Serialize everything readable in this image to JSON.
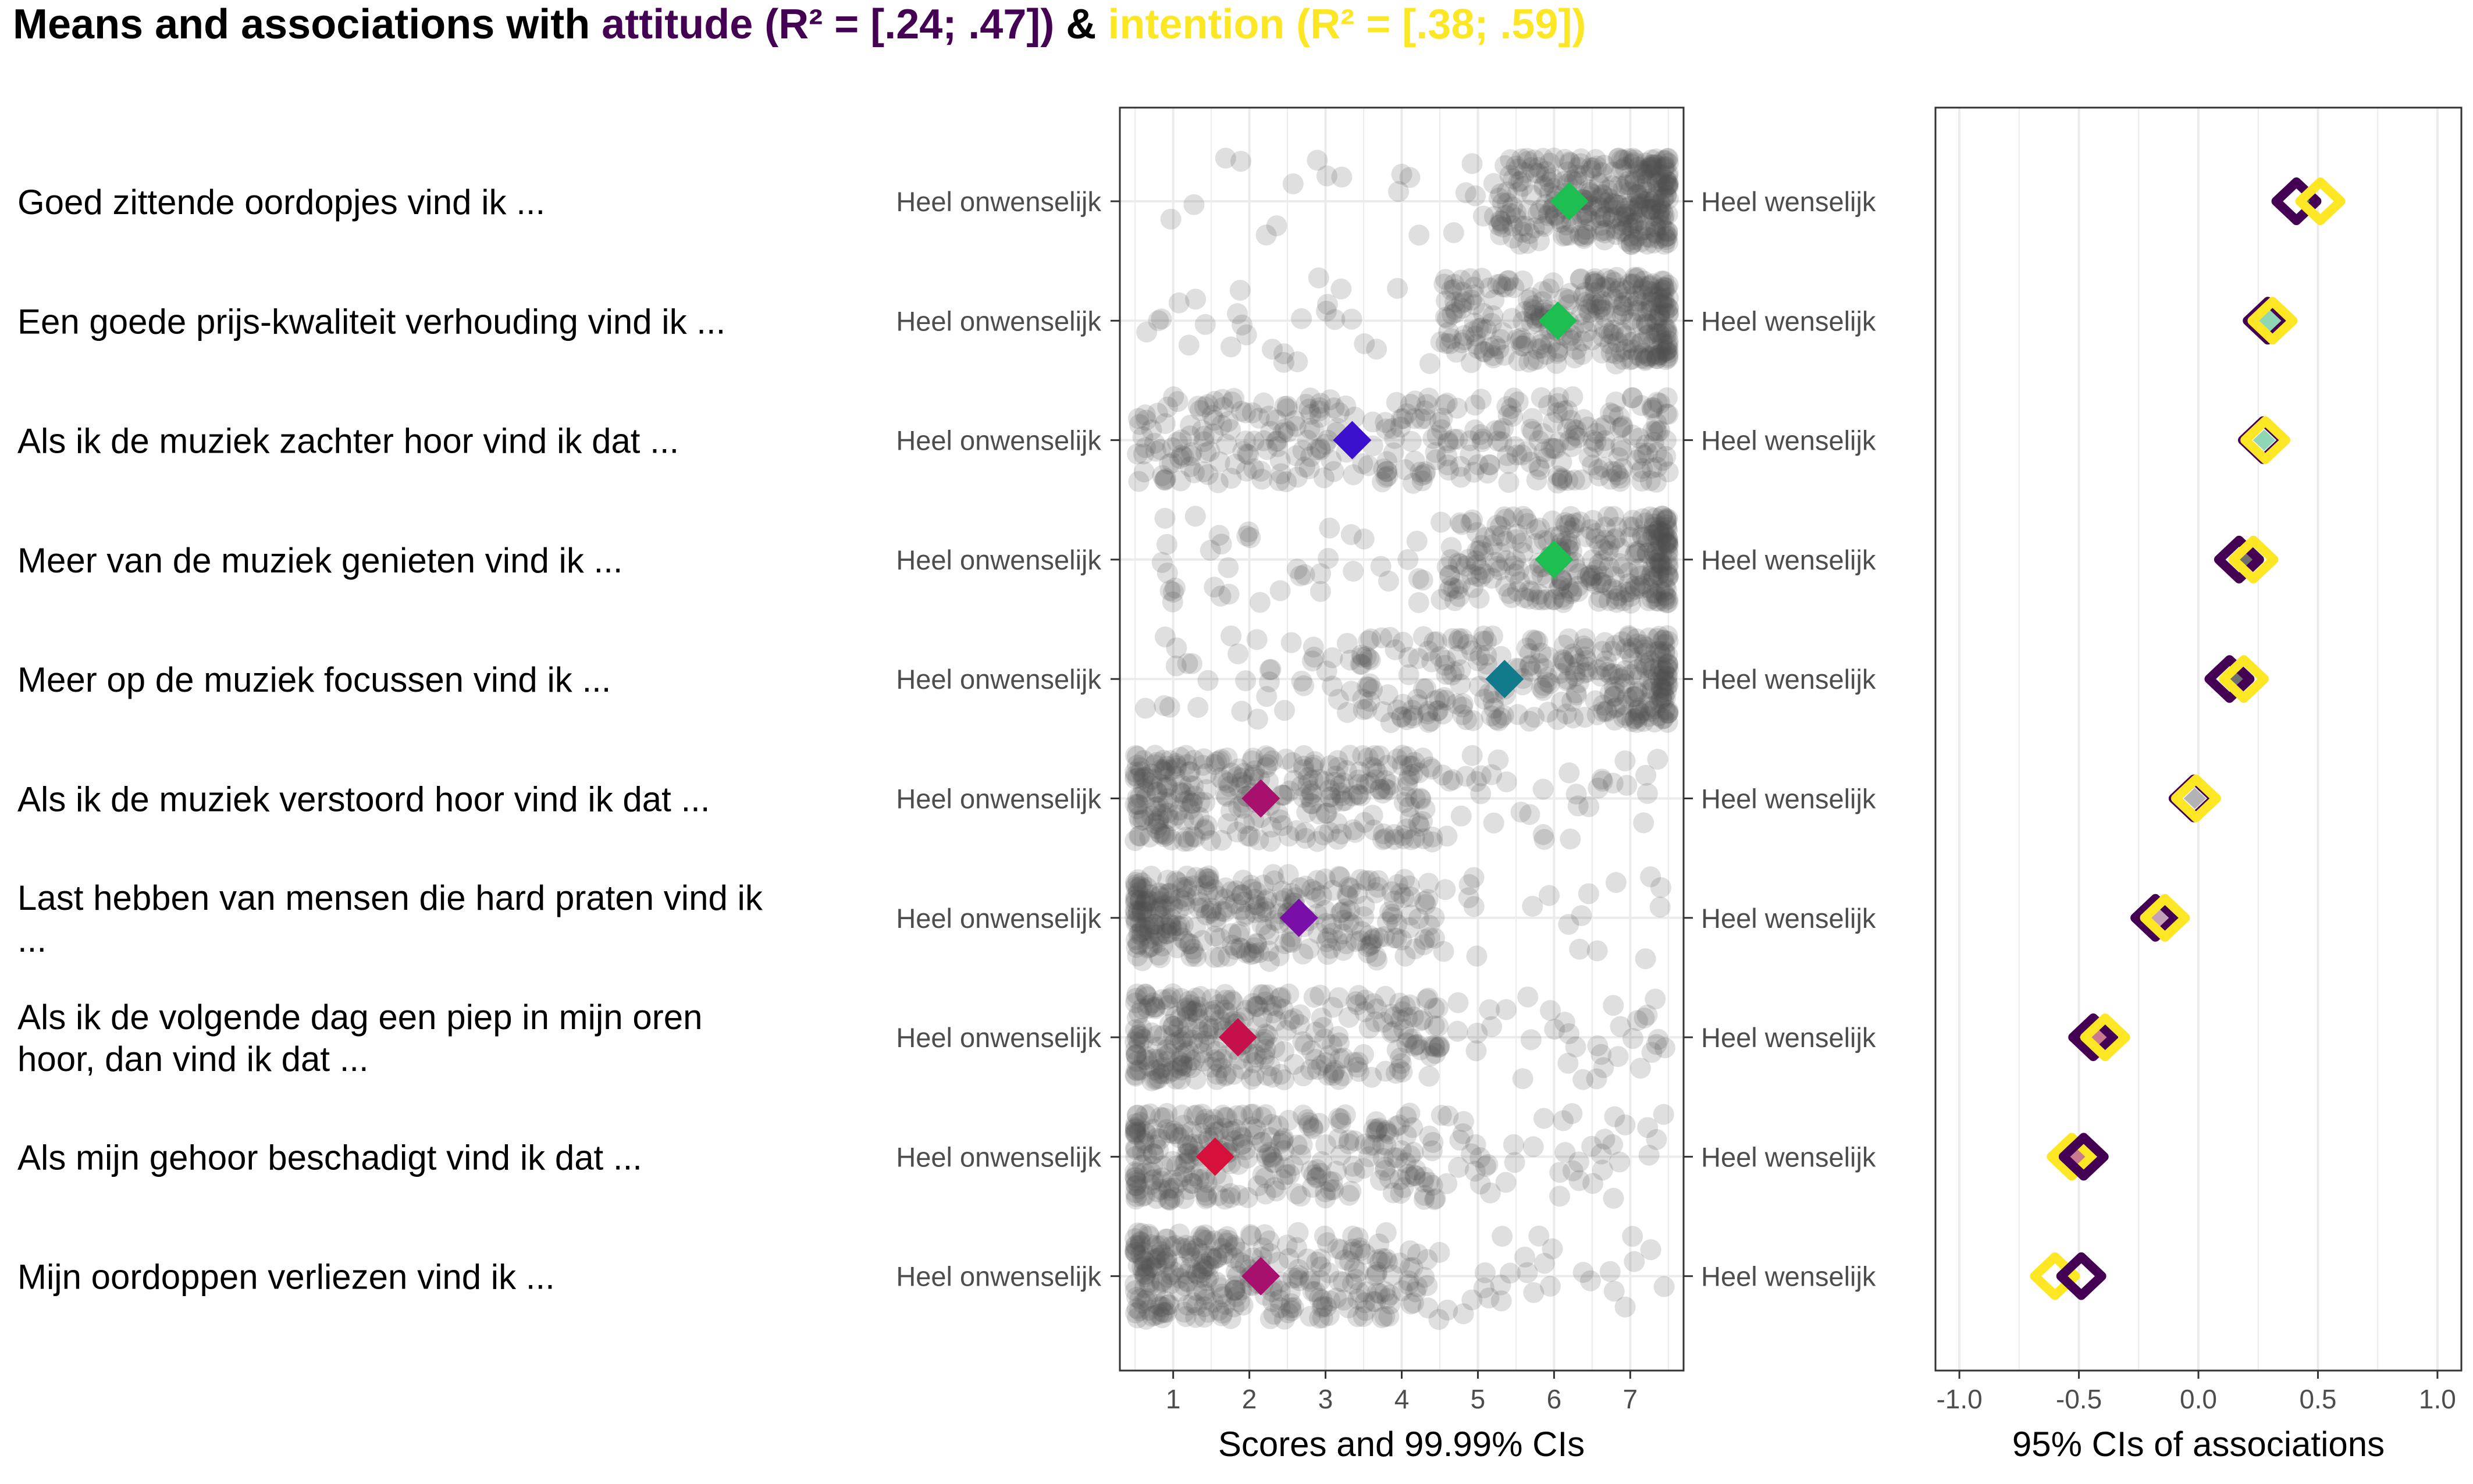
{
  "chart_data": {
    "type": "scatter",
    "title": {
      "prefix": "Means and associations with ",
      "attitude_label": "attitude (R² = [.24; .47])",
      "amp": " & ",
      "intention_label": "intention (R² = [.38; .59])"
    },
    "colors": {
      "attitude": "#440154",
      "intention": "#FDE725",
      "points": "#4d4d4d",
      "grid": "#ebebeb"
    },
    "anchors": {
      "low": "Heel onwenselijk",
      "high": "Heel wenselijk"
    },
    "score_panel": {
      "xlabel": "Scores and 99.99% CIs",
      "xlim": [
        0.3,
        7.7
      ],
      "ticks": [
        "1",
        "2",
        "3",
        "4",
        "5",
        "6",
        "7"
      ]
    },
    "assoc_panel": {
      "xlabel": "95% CIs of associations",
      "xlim": [
        -1.1,
        1.1
      ],
      "ticks": [
        "-1.0",
        "-0.5",
        "0.0",
        "0.5",
        "1.0"
      ]
    },
    "items": [
      {
        "label": [
          "Goed zittende oordopjes vind ik ..."
        ],
        "mean": 6.2,
        "mean_color": "#1DBF50",
        "spread": [
          5.2,
          7.5
        ],
        "density": 0.9,
        "attitude_r": 0.41,
        "intention_r": 0.51,
        "ci_fill": "#3a7d5c"
      },
      {
        "label": [
          "Een goede prijs-kwaliteit verhouding vind ik ..."
        ],
        "mean": 6.05,
        "mean_color": "#1DBF50",
        "spread": [
          4.5,
          7.5
        ],
        "density": 0.85,
        "attitude_r": 0.29,
        "intention_r": 0.31,
        "ci_fill": "#8fd6b4"
      },
      {
        "label": [
          "Als ik de muziek zachter hoor vind ik dat ..."
        ],
        "mean": 3.35,
        "mean_color": "#3B10CC",
        "spread": [
          0.5,
          7.5
        ],
        "density": 0.6,
        "attitude_r": 0.27,
        "intention_r": 0.28,
        "ci_fill": "#8fd6b4"
      },
      {
        "label": [
          "Meer van de muziek genieten vind ik ..."
        ],
        "mean": 6.0,
        "mean_color": "#1DBF50",
        "spread": [
          4.5,
          7.5
        ],
        "density": 0.85,
        "attitude_r": 0.17,
        "intention_r": 0.23,
        "ci_fill": "#6f6f6f"
      },
      {
        "label": [
          "Meer op de muziek focussen vind ik ..."
        ],
        "mean": 5.35,
        "mean_color": "#117A8B",
        "spread": [
          3.0,
          7.5
        ],
        "density": 0.75,
        "attitude_r": 0.13,
        "intention_r": 0.19,
        "ci_fill": "#6f6f6f"
      },
      {
        "label": [
          "Als ik de muziek verstoord hoor vind ik dat ..."
        ],
        "mean": 2.15,
        "mean_color": "#A8106E",
        "spread": [
          0.5,
          4.5
        ],
        "density": 0.85,
        "attitude_r": -0.02,
        "intention_r": -0.01,
        "ci_fill": "#b3b3b3"
      },
      {
        "label": [
          "Last hebben van mensen die hard praten vind ik",
          "..."
        ],
        "mean": 2.65,
        "mean_color": "#7A0FA8",
        "spread": [
          0.5,
          4.5
        ],
        "density": 0.85,
        "attitude_r": -0.18,
        "intention_r": -0.14,
        "ci_fill": "#c4a0b8"
      },
      {
        "label": [
          "Als ik de volgende dag een piep in mijn oren",
          "hoor, dan vind ik dat ..."
        ],
        "mean": 1.85,
        "mean_color": "#C5104A",
        "spread": [
          0.5,
          4.5
        ],
        "density": 0.8,
        "attitude_r": -0.44,
        "intention_r": -0.39,
        "ci_fill": "#c97a8f"
      },
      {
        "label": [
          "Als mijn gehoor beschadigt vind ik dat ..."
        ],
        "mean": 1.55,
        "mean_color": "#D6103A",
        "spread": [
          0.5,
          4.5
        ],
        "density": 0.8,
        "attitude_r": -0.48,
        "intention_r": -0.53,
        "ci_fill": "#c97a8f"
      },
      {
        "label": [
          "Mijn oordoppen verliezen vind ik ..."
        ],
        "mean": 2.15,
        "mean_color": "#A8106E",
        "spread": [
          0.5,
          4.5
        ],
        "density": 0.8,
        "attitude_r": -0.49,
        "intention_r": -0.6,
        "ci_fill": "#e8a8a8"
      }
    ]
  }
}
